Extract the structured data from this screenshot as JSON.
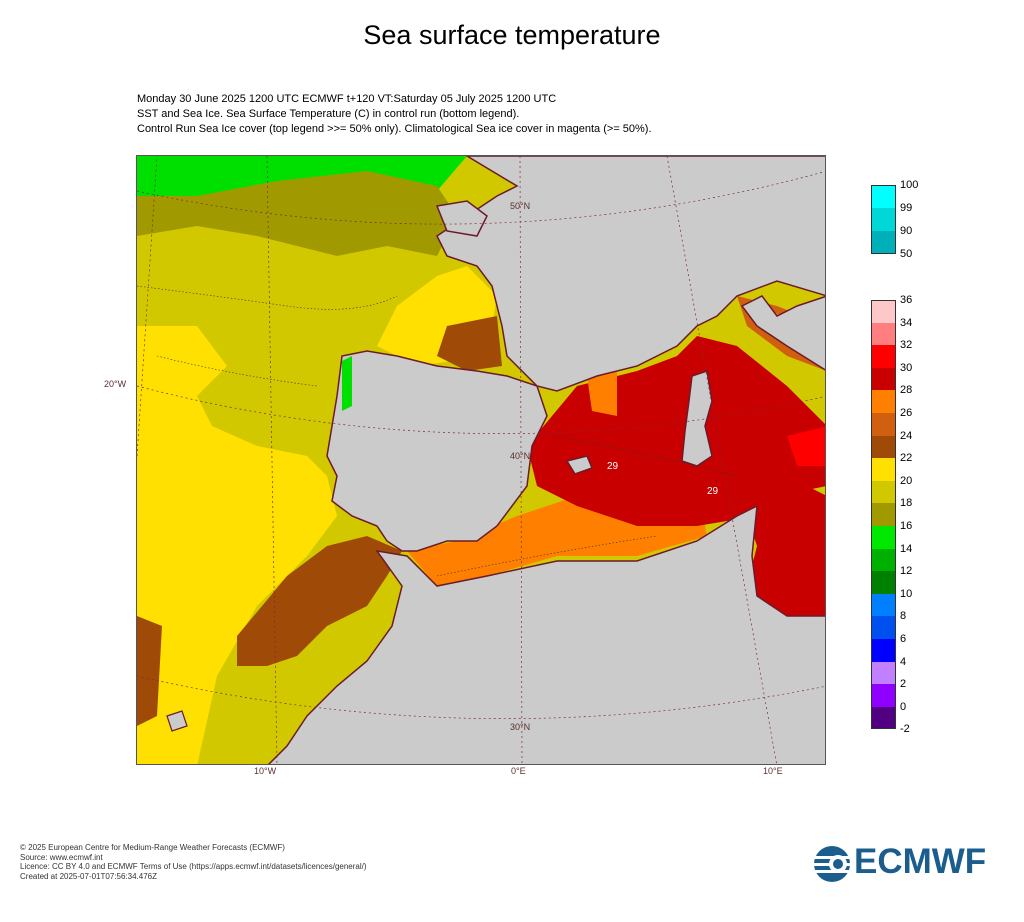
{
  "title": "Sea surface temperature",
  "subtitle": [
    "Monday 30 June 2025 1200 UTC  ECMWF  t+120  VT:Saturday 05 July 2025 1200 UTC",
    "SST and Sea Ice. Sea Surface Temperature (C) in control run (bottom legend).",
    "Control Run Sea Ice cover (top legend >>= 50% only). Climatological Sea ice cover in magenta (>= 50%)."
  ],
  "map": {
    "lon_labels": [
      "10°W",
      "0°E",
      "10°E"
    ],
    "lat_labels": [
      "50°N",
      "40°N",
      "30°N"
    ],
    "left_label": "20°W",
    "contour_labels": [
      "29",
      "29"
    ],
    "colors": {
      "land": "#cbcbcb",
      "coast": "#6b1b2b",
      "grid": "#7a2b3a"
    }
  },
  "ice_legend": {
    "ticks": [
      "100",
      "99",
      "90",
      "50"
    ],
    "colors": [
      "#00ffff",
      "#00d8d8",
      "#00b0b8"
    ]
  },
  "sst_legend": {
    "ticks": [
      "36",
      "34",
      "32",
      "30",
      "28",
      "26",
      "24",
      "22",
      "20",
      "18",
      "16",
      "14",
      "12",
      "10",
      "8",
      "6",
      "4",
      "2",
      "0",
      "-2"
    ],
    "colors": [
      "#ffc8c8",
      "#ff7f80",
      "#ff0000",
      "#c80000",
      "#ff7f00",
      "#d06010",
      "#a04a08",
      "#ffe000",
      "#d0c800",
      "#a09a00",
      "#00e800",
      "#00b000",
      "#008000",
      "#0080ff",
      "#0050f0",
      "#0000ff",
      "#c080ff",
      "#9000ff",
      "#500080"
    ]
  },
  "footer": [
    "© 2025 European Centre for Medium-Range Weather Forecasts (ECMWF)",
    "Source: www.ecmwf.int",
    "Licence: CC BY 4.0 and ECMWF Terms of Use (https://apps.ecmwf.int/datasets/licences/general/)",
    "Created at 2025-07-01T07:56:34.476Z"
  ],
  "logo_text": "ECMWF"
}
